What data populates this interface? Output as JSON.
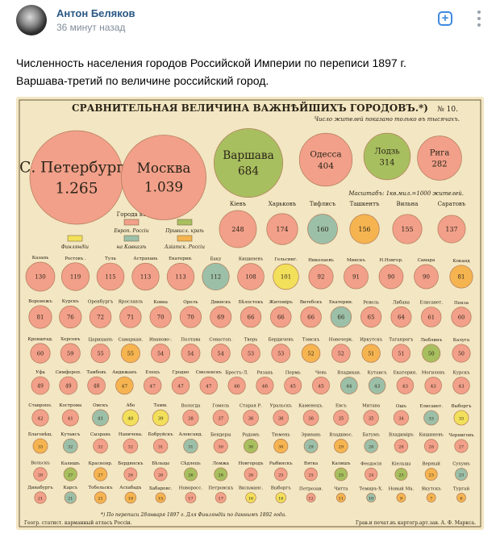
{
  "post": {
    "author": "Антон Беляков",
    "time": "36 минут назад",
    "text_line1": "Численность населения городов Российской Империи по переписи 1897 г.",
    "text_line2": "Варшава-третий по величине российский город."
  },
  "icons": {
    "add": "plus-square-icon",
    "more": "vertical-dots-icon"
  },
  "colors": {
    "author": "#2a5885",
    "accent": "#3f8ae0",
    "time": "#818c99",
    "paper": "#f3e6c2",
    "pink": "#f2a08a",
    "green": "#a8bf5f",
    "orange": "#f5b450",
    "teal": "#9cbfa8",
    "yellow": "#f2e05a"
  },
  "poster": {
    "title": "СРАВНИТЕЛЬНАЯ ВЕЛИЧИНА ВАЖНѢЙШИХЪ ГОРОДОВЪ.*)",
    "number": "№ 10.",
    "note": "Число жителей показано только въ тысячахъ.",
    "scale_note": "Масштабъ: 1кв.мил.=1000 жителей.",
    "legend": {
      "title": "Города въ",
      "europe": "Европ. Россіи",
      "privislin": "Привисл. краѣ",
      "finland": "Финляндіи",
      "caucasus": "на Кавказѣ",
      "asia": "Азіатск. Россіи"
    },
    "footnote": "*) По переписи 28января 1897 г.   Для Финляндіи по даннымъ 1892 года.",
    "publisher_left": "Геогр. статист. карманный атласъ Россіи.",
    "publisher_right": "Грав.и печат.въ картогр.арт.зав. А. Ф. Маркса."
  },
  "chart_data": {
    "type": "bubble",
    "title": "СРАВНИТЕЛЬНАЯ ВЕЛИЧИНА ВАЖНѢЙШИХЪ ГОРОДОВЪ.*)",
    "unit": "тысячъ жителей",
    "cities_large": [
      {
        "name": "С. Петербургъ",
        "value": 1265,
        "label": "1.265",
        "color": "pink"
      },
      {
        "name": "Москва",
        "value": 1039,
        "label": "1.039",
        "color": "pink"
      },
      {
        "name": "Варшава",
        "value": 684,
        "label": "684",
        "color": "green"
      },
      {
        "name": "Одесса",
        "value": 404,
        "label": "404",
        "color": "pink"
      },
      {
        "name": "Лодзь",
        "value": 314,
        "label": "314",
        "color": "green"
      },
      {
        "name": "Рига",
        "value": 282,
        "label": "282",
        "color": "pink"
      }
    ],
    "cities_medium": [
      {
        "name": "Кіевъ",
        "value": 248,
        "color": "pink"
      },
      {
        "name": "Харьковъ",
        "value": 174,
        "color": "pink"
      },
      {
        "name": "Тифлисъ",
        "value": 160,
        "color": "teal"
      },
      {
        "name": "Ташкентъ",
        "value": 156,
        "color": "orange"
      },
      {
        "name": "Вильна",
        "value": 155,
        "color": "pink"
      },
      {
        "name": "Саратовъ",
        "value": 137,
        "color": "pink"
      }
    ],
    "rows": [
      [
        {
          "name": "Казань",
          "value": 130,
          "color": "pink"
        },
        {
          "name": "Ростовъ н/Д.",
          "value": 119,
          "color": "pink"
        },
        {
          "name": "Тула",
          "value": 115,
          "color": "pink"
        },
        {
          "name": "Астрахань",
          "value": 113,
          "color": "pink"
        },
        {
          "name": "Екатеринослав",
          "value": 113,
          "color": "pink"
        },
        {
          "name": "Баку",
          "value": 112,
          "color": "teal"
        },
        {
          "name": "Кишиневъ",
          "value": 108,
          "color": "pink"
        },
        {
          "name": "Гельсингфорсъ",
          "value": 101,
          "color": "yellow"
        },
        {
          "name": "Николаевъ",
          "value": 92,
          "color": "pink"
        },
        {
          "name": "Минскъ",
          "value": 91,
          "color": "pink"
        },
        {
          "name": "Н.Новгородъ",
          "value": 90,
          "color": "pink"
        },
        {
          "name": "Самара",
          "value": 90,
          "color": "pink"
        },
        {
          "name": "Коканд",
          "value": 81,
          "color": "orange"
        }
      ],
      [
        {
          "name": "Воронежъ",
          "value": 81,
          "color": "pink"
        },
        {
          "name": "Курскъ",
          "value": 76,
          "color": "pink"
        },
        {
          "name": "Оренбургъ",
          "value": 72,
          "color": "pink"
        },
        {
          "name": "Ярославль",
          "value": 71,
          "color": "pink"
        },
        {
          "name": "Ковна",
          "value": 70,
          "color": "pink"
        },
        {
          "name": "Орелъ",
          "value": 70,
          "color": "pink"
        },
        {
          "name": "Двинскъ",
          "value": 69,
          "color": "pink"
        },
        {
          "name": "Бѣлостокъ",
          "value": 66,
          "color": "pink"
        },
        {
          "name": "Житоміръ",
          "value": 66,
          "color": "pink"
        },
        {
          "name": "Витебскъ",
          "value": 66,
          "color": "pink"
        },
        {
          "name": "Екатеринод.",
          "value": 66,
          "color": "teal"
        },
        {
          "name": "Ревель",
          "value": 65,
          "color": "pink"
        },
        {
          "name": "Либава",
          "value": 64,
          "color": "pink"
        },
        {
          "name": "Елисаветгр.",
          "value": 61,
          "color": "pink"
        },
        {
          "name": "Пенза",
          "value": 60,
          "color": "pink"
        }
      ],
      [
        {
          "name": "Кронштадтъ",
          "value": 60,
          "color": "pink"
        },
        {
          "name": "Херсонъ",
          "value": 59,
          "color": "pink"
        },
        {
          "name": "Царицынъ",
          "value": 55,
          "color": "pink"
        },
        {
          "name": "Самаркандъ",
          "value": 55,
          "color": "orange"
        },
        {
          "name": "Иваново-Вознесенскъ",
          "value": 54,
          "color": "pink"
        },
        {
          "name": "Полтава",
          "value": 54,
          "color": "pink"
        },
        {
          "name": "Севастополь",
          "value": 54,
          "color": "pink"
        },
        {
          "name": "Тверь",
          "value": 53,
          "color": "pink"
        },
        {
          "name": "Бердичевъ",
          "value": 53,
          "color": "pink"
        },
        {
          "name": "Томскъ",
          "value": 52,
          "color": "orange"
        },
        {
          "name": "Новочеркасскъ",
          "value": 52,
          "color": "pink"
        },
        {
          "name": "Иркутскъ",
          "value": 51,
          "color": "orange"
        },
        {
          "name": "Таганрогъ",
          "value": 51,
          "color": "pink"
        },
        {
          "name": "Люблинъ",
          "value": 50,
          "color": "green"
        },
        {
          "name": "Калуга",
          "value": 50,
          "color": "pink"
        }
      ],
      [
        {
          "name": "Уфа",
          "value": 49,
          "color": "pink"
        },
        {
          "name": "Симферополь",
          "value": 49,
          "color": "pink"
        },
        {
          "name": "Тамбовъ",
          "value": 48,
          "color": "pink"
        },
        {
          "name": "Андижанъ",
          "value": 47,
          "color": "orange"
        },
        {
          "name": "Елецъ",
          "value": 47,
          "color": "pink"
        },
        {
          "name": "Гродно",
          "value": 47,
          "color": "pink"
        },
        {
          "name": "Смоленскъ",
          "value": 47,
          "color": "pink"
        },
        {
          "name": "Брестъ-Литовскъ",
          "value": 46,
          "color": "pink"
        },
        {
          "name": "Рязань",
          "value": 46,
          "color": "pink"
        },
        {
          "name": "Пермь",
          "value": 45,
          "color": "pink"
        },
        {
          "name": "Чевъ",
          "value": 45,
          "color": "pink"
        },
        {
          "name": "Владикавказъ",
          "value": 44,
          "color": "teal"
        },
        {
          "name": "Кутаисъ",
          "value": 43,
          "color": "teal"
        },
        {
          "name": "Екатеринбургъ",
          "value": 43,
          "color": "pink"
        },
        {
          "name": "Могилевъ",
          "value": 43,
          "color": "pink"
        },
        {
          "name": "Курскъ",
          "value": 43,
          "color": "pink"
        }
      ],
      [
        {
          "name": "Ставрополь",
          "value": 42,
          "color": "pink"
        },
        {
          "name": "Кострома",
          "value": 41,
          "color": "pink"
        },
        {
          "name": "Омскъ",
          "value": 41,
          "color": "teal"
        },
        {
          "name": "Або",
          "value": 40,
          "color": "yellow"
        },
        {
          "name": "Тамм.",
          "value": 39,
          "color": "yellow"
        },
        {
          "name": "Вологда",
          "value": 38,
          "color": "pink"
        },
        {
          "name": "Гомель",
          "value": 37,
          "color": "pink"
        },
        {
          "name": "Старая Руса",
          "value": 36,
          "color": "pink"
        },
        {
          "name": "Уральскъ",
          "value": 36,
          "color": "pink"
        },
        {
          "name": "Каменецъ-Подольскъ",
          "value": 36,
          "color": "pink"
        },
        {
          "name": "Евсъ",
          "value": 35,
          "color": "pink"
        },
        {
          "name": "Митава",
          "value": 35,
          "color": "pink"
        },
        {
          "name": "Ошъ",
          "value": 34,
          "color": "pink"
        },
        {
          "name": "Елисаветполь",
          "value": 33,
          "color": "teal"
        },
        {
          "name": "Выборгъ",
          "value": 33,
          "color": "yellow"
        }
      ],
      [
        {
          "name": "Благовѣщенскъ",
          "value": 33,
          "color": "orange"
        },
        {
          "name": "Кутаисъ",
          "value": 32,
          "color": "teal"
        },
        {
          "name": "Сызрань",
          "value": 32,
          "color": "pink"
        },
        {
          "name": "Нахичевань",
          "value": 32,
          "color": "pink"
        },
        {
          "name": "Бобруйскъ",
          "value": 31,
          "color": "pink"
        },
        {
          "name": "Александрополь",
          "value": 31,
          "color": "teal"
        },
        {
          "name": "Бендеры",
          "value": 30,
          "color": "pink"
        },
        {
          "name": "Радомъ",
          "value": 30,
          "color": "green"
        },
        {
          "name": "Тюмень",
          "value": 30,
          "color": "orange"
        },
        {
          "name": "Эривань",
          "value": 29,
          "color": "teal"
        },
        {
          "name": "Владивостокъ",
          "value": 29,
          "color": "orange"
        },
        {
          "name": "Батумъ",
          "value": 28,
          "color": "teal"
        },
        {
          "name": "Владиміръ",
          "value": 28,
          "color": "pink"
        },
        {
          "name": "Кишиневъ",
          "value": 28,
          "color": "pink"
        },
        {
          "name": "Черниговъ",
          "value": 27,
          "color": "pink"
        }
      ],
      [
        {
          "name": "Вольскъ",
          "value": 28,
          "color": "pink"
        },
        {
          "name": "Калишъ",
          "value": 27,
          "color": "green"
        },
        {
          "name": "Красноярскъ",
          "value": 27,
          "color": "orange"
        },
        {
          "name": "Бердянскъ",
          "value": 26,
          "color": "pink"
        },
        {
          "name": "Бѣльцы",
          "value": 26,
          "color": "pink"
        },
        {
          "name": "Сѣдлецъ",
          "value": 26,
          "color": "green"
        },
        {
          "name": "Ломжа",
          "value": 26,
          "color": "green"
        },
        {
          "name": "Новгородъ",
          "value": 26,
          "color": "pink"
        },
        {
          "name": "Рыбинскъ",
          "value": 25,
          "color": "pink"
        },
        {
          "name": "Вятка",
          "value": 25,
          "color": "pink"
        },
        {
          "name": "Калишъ",
          "value": 25,
          "color": "green"
        },
        {
          "name": "Феодосія",
          "value": 24,
          "color": "pink"
        },
        {
          "name": "Кіельцы",
          "value": 23,
          "color": "green"
        },
        {
          "name": "Верный",
          "value": 23,
          "color": "orange"
        },
        {
          "name": "Сухумъ",
          "value": 23,
          "color": "teal"
        }
      ],
      [
        {
          "name": "Динабургъ",
          "value": 21,
          "color": "pink"
        },
        {
          "name": "Карсъ",
          "value": 21,
          "color": "teal"
        },
        {
          "name": "Тобольскъ",
          "value": 21,
          "color": "orange"
        },
        {
          "name": "Асхабадъ",
          "value": 19,
          "color": "orange"
        },
        {
          "name": "Хабаровскъ",
          "value": 15,
          "color": "orange"
        },
        {
          "name": "Новороссійскъ",
          "value": 17,
          "color": "pink"
        },
        {
          "name": "Петровскъ",
          "value": 17,
          "color": "pink"
        },
        {
          "name": "Вильманстрандъ",
          "value": 16,
          "color": "yellow"
        },
        {
          "name": "Выборгъ",
          "value": 16,
          "color": "yellow"
        },
        {
          "name": "Петрозаводскъ",
          "value": 12,
          "color": "pink"
        },
        {
          "name": "Читта",
          "value": 11,
          "color": "orange"
        },
        {
          "name": "Темиръ-Ханъ-Шура",
          "value": 10,
          "color": "teal"
        },
        {
          "name": "Новый Маргеланъ",
          "value": 9,
          "color": "orange"
        },
        {
          "name": "Якутскъ",
          "value": 7,
          "color": "orange"
        },
        {
          "name": "Тургай",
          "value": 6,
          "color": "orange"
        }
      ]
    ]
  }
}
